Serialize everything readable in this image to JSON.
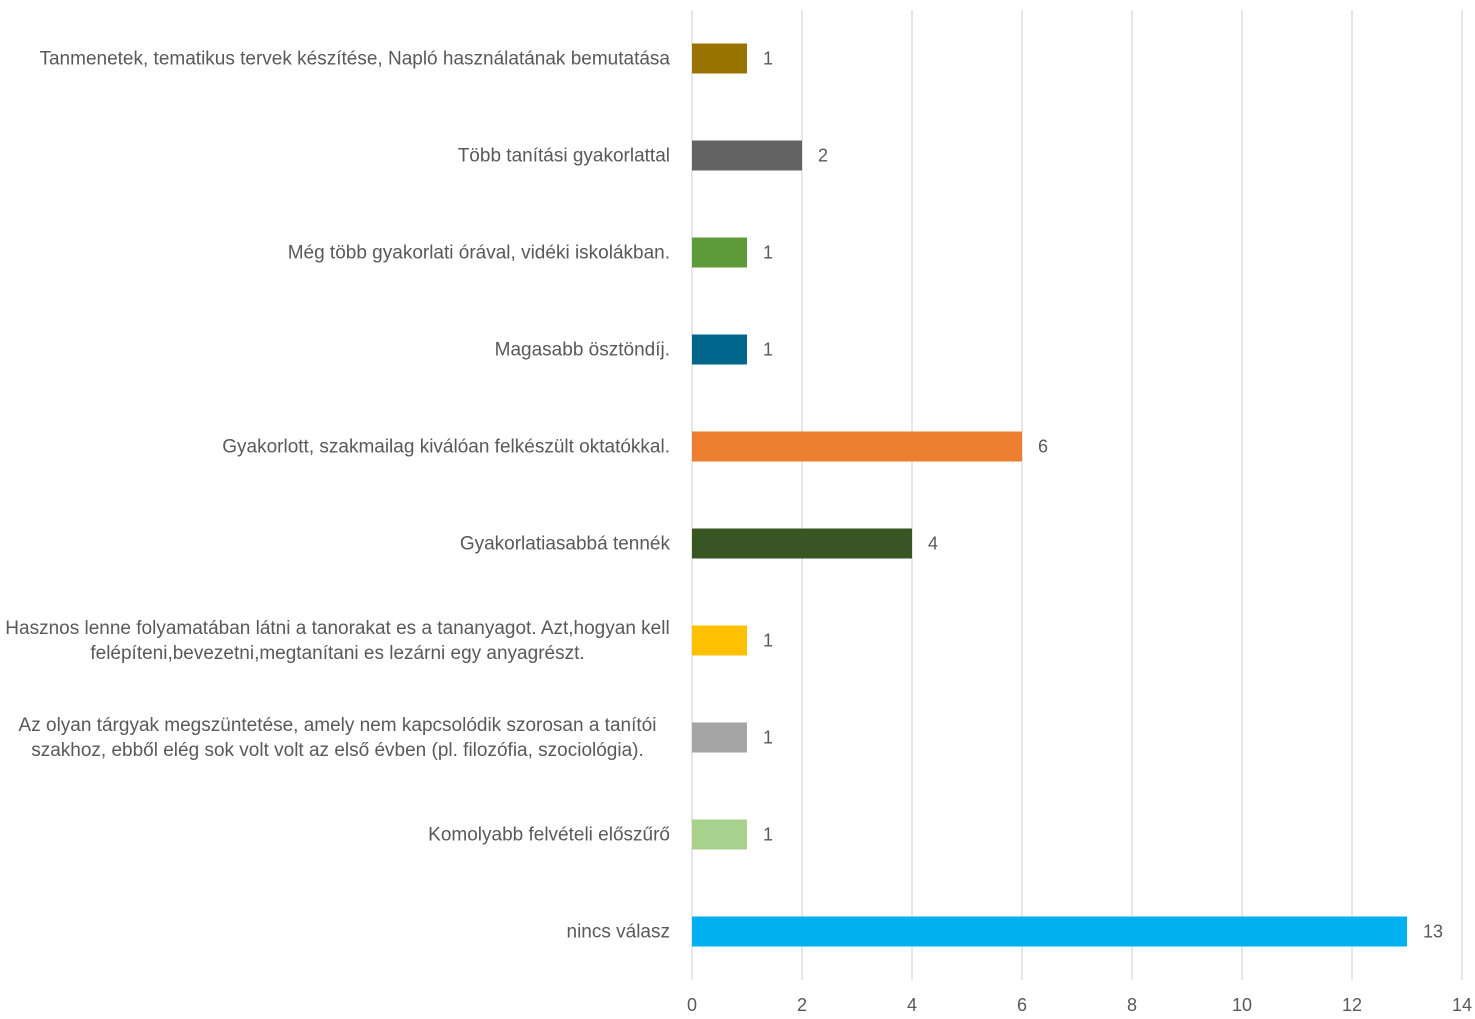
{
  "chart_data": {
    "type": "bar",
    "orientation": "horizontal",
    "categories": [
      "Tanmenetek, tematikus tervek készítése, Napló használatának bemutatása",
      "Több tanítási gyakorlattal",
      "Még több gyakorlati órával, vidéki iskolákban.",
      "Magasabb ösztöndíj.",
      "Gyakorlott, szakmailag kiválóan felkészült oktatókkal.",
      "Gyakorlatiasabbá tennék",
      "Hasznos lenne folyamatában látni a tanorakat es a tananyagot. Azt,hogyan kell felépíteni,bevezetni,megtanítani es lezárni egy anyagrészt.",
      "Az olyan tárgyak megszüntetése, amely nem kapcsolódik szorosan a tanítói szakhoz, ebből elég sok volt volt az első évben (pl. filozófia, szociológia).",
      "Komolyabb felvételi előszűrő",
      "nincs válasz"
    ],
    "values": [
      1,
      2,
      1,
      1,
      6,
      4,
      1,
      1,
      1,
      13
    ],
    "colors": [
      "#997300",
      "#636363",
      "#5e9a3a",
      "#00668c",
      "#ed7d31",
      "#375623",
      "#ffc000",
      "#a5a5a5",
      "#a9d18e",
      "#00b0f0"
    ],
    "xlim": [
      0,
      14
    ],
    "xticks": [
      0,
      2,
      4,
      6,
      8,
      10,
      12,
      14
    ],
    "grid": true
  }
}
